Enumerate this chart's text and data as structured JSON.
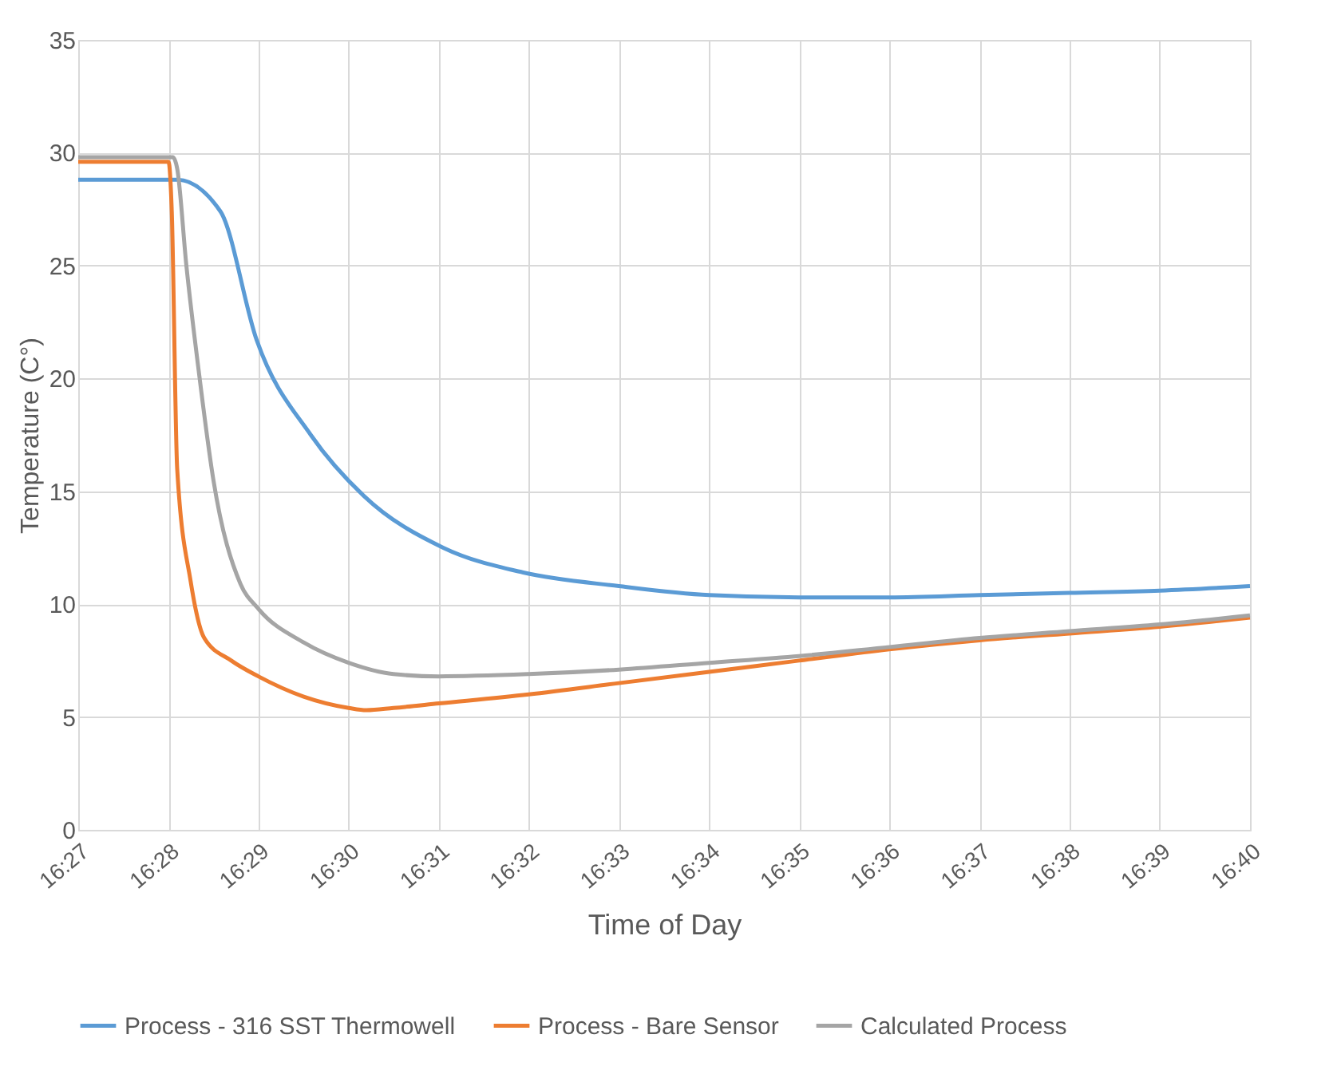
{
  "chart_data": {
    "type": "line",
    "xlabel": "Time of Day",
    "ylabel": "Temperature (C°)",
    "xlim": [
      16.45,
      16.6667
    ],
    "ylim": [
      0,
      35
    ],
    "yticks": [
      0,
      5,
      10,
      15,
      20,
      25,
      30,
      35
    ],
    "xticks": [
      {
        "value": 16.45,
        "label": "16:27"
      },
      {
        "value": 16.4667,
        "label": "16:28"
      },
      {
        "value": 16.4833,
        "label": "16:29"
      },
      {
        "value": 16.5,
        "label": "16:30"
      },
      {
        "value": 16.5167,
        "label": "16:31"
      },
      {
        "value": 16.5333,
        "label": "16:32"
      },
      {
        "value": 16.55,
        "label": "16:33"
      },
      {
        "value": 16.5667,
        "label": "16:34"
      },
      {
        "value": 16.5833,
        "label": "16:35"
      },
      {
        "value": 16.6,
        "label": "16:36"
      },
      {
        "value": 16.6167,
        "label": "16:37"
      },
      {
        "value": 16.6333,
        "label": "16:38"
      },
      {
        "value": 16.65,
        "label": "16:39"
      },
      {
        "value": 16.6667,
        "label": "16:40"
      }
    ],
    "grid": true,
    "legend": "bottom",
    "marker": "none",
    "line_style": "solid",
    "series": [
      {
        "name": "Process - 316 SST Thermowell",
        "color": "#5b9bd5",
        "x": [
          16.45,
          16.4683,
          16.4763,
          16.483,
          16.493,
          16.5028,
          16.5175,
          16.5323,
          16.55,
          16.5667,
          16.5833,
          16.6,
          16.6167,
          16.6333,
          16.65,
          16.6667
        ],
        "values": [
          28.8,
          28.8,
          27.4,
          21.7,
          17.5,
          14.8,
          12.5,
          11.4,
          10.8,
          10.4,
          10.3,
          10.3,
          10.4,
          10.5,
          10.6,
          10.8
        ]
      },
      {
        "name": "Process - Bare Sensor",
        "color": "#ed7d31",
        "x": [
          16.45,
          16.4667,
          16.4673,
          16.4683,
          16.4708,
          16.4733,
          16.4783,
          16.4833,
          16.4917,
          16.5,
          16.5033,
          16.5083,
          16.5167,
          16.5333,
          16.55,
          16.5667,
          16.5833,
          16.6,
          16.6167,
          16.6333,
          16.65,
          16.6667
        ],
        "values": [
          29.6,
          29.6,
          27.4,
          16,
          11,
          8.5,
          7.5,
          6.8,
          5.9,
          5.4,
          5.3,
          5.4,
          5.6,
          6.0,
          6.5,
          7.0,
          7.5,
          8.0,
          8.4,
          8.7,
          9.0,
          9.4
        ]
      },
      {
        "name": "Calculated Process",
        "color": "#a5a5a5",
        "x": [
          16.45,
          16.4675,
          16.4683,
          16.47,
          16.4723,
          16.475,
          16.48,
          16.4833,
          16.4917,
          16.5,
          16.5083,
          16.5167,
          16.5333,
          16.55,
          16.5667,
          16.5833,
          16.6,
          16.6167,
          16.6333,
          16.65,
          16.6667
        ],
        "values": [
          29.8,
          29.8,
          29.3,
          25,
          20.3,
          15.5,
          10.9,
          9.8,
          8.3,
          7.4,
          6.9,
          6.8,
          6.9,
          7.1,
          7.4,
          7.7,
          8.1,
          8.5,
          8.8,
          9.1,
          9.5
        ]
      }
    ]
  }
}
